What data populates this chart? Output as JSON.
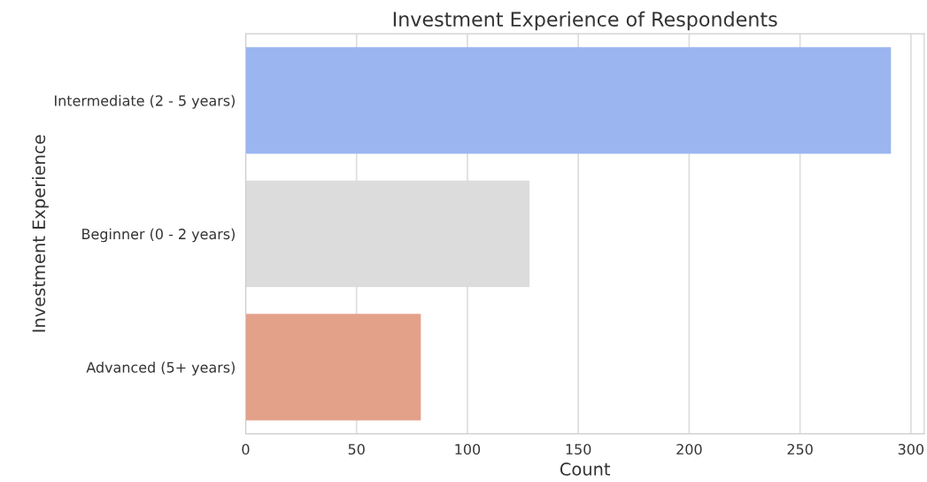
{
  "chart_data": {
    "type": "bar",
    "orientation": "horizontal",
    "title": "Investment Experience of Respondents",
    "xlabel": "Count",
    "ylabel": "Investment Experience",
    "categories": [
      "Intermediate (2 - 5 years)",
      "Beginner (0 - 2 years)",
      "Advanced (5+ years)"
    ],
    "values": [
      291,
      128,
      79
    ],
    "colors": [
      "#9ab5f0",
      "#dcdcdc",
      "#e4a18a"
    ],
    "xlim": [
      0,
      306
    ],
    "xticks": [
      0,
      50,
      100,
      150,
      200,
      250,
      300
    ],
    "grid": "x"
  }
}
